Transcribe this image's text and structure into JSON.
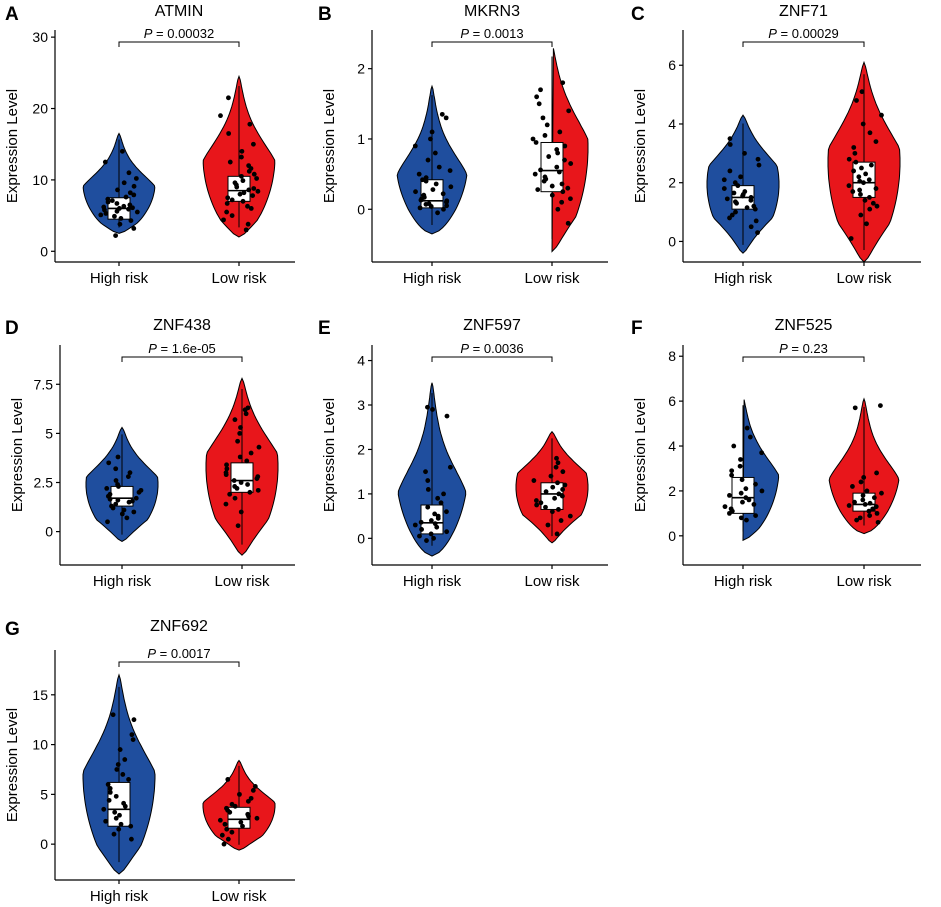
{
  "colors": {
    "high_risk": "#1f4e9e",
    "low_risk": "#e8161b",
    "box": "#ffffff",
    "ink": "#000000"
  },
  "chart_data": [
    {
      "panel": "A",
      "type": "violin",
      "title": "ATMIN",
      "ylabel": "Expression Level",
      "xlabel": "",
      "categories": [
        "High risk",
        "Low risk"
      ],
      "ylim": [
        -1.5,
        31
      ],
      "yticks": [
        0,
        10,
        20,
        30
      ],
      "pvalue_label": "P",
      "pvalue_text": " = 0.00032",
      "series": [
        {
          "name": "High risk",
          "min": 2.5,
          "max": 16.5,
          "mode": 6.5,
          "box": {
            "q1": 4.5,
            "median": 6.0,
            "q3": 7.5
          },
          "points": [
            2.2,
            3.2,
            3.8,
            4.3,
            4.6,
            4.9,
            5.1,
            5.3,
            5.5,
            5.6,
            5.8,
            5.9,
            6.0,
            6.1,
            6.2,
            6.3,
            6.5,
            6.7,
            6.9,
            7.1,
            7.3,
            7.6,
            7.9,
            8.2,
            8.6,
            9.1,
            9.6,
            10.2,
            11.0,
            12.5,
            14.0
          ]
        },
        {
          "name": "Low risk",
          "min": 2.0,
          "max": 24.5,
          "mode": 8.5,
          "box": {
            "q1": 7.0,
            "median": 8.5,
            "q3": 10.5
          },
          "points": [
            3.0,
            3.8,
            4.4,
            5.0,
            5.5,
            6.0,
            6.3,
            6.7,
            7.0,
            7.2,
            7.5,
            7.8,
            8.0,
            8.2,
            8.4,
            8.6,
            8.8,
            9.0,
            9.3,
            9.6,
            9.9,
            10.2,
            10.5,
            10.8,
            11.2,
            11.6,
            12.0,
            12.5,
            13.2,
            14.0,
            15.0,
            16.5,
            17.8,
            19.0,
            21.5
          ]
        }
      ]
    },
    {
      "panel": "B",
      "type": "violin",
      "title": "MKRN3",
      "ylabel": "Expression Level",
      "xlabel": "",
      "categories": [
        "High risk",
        "Low risk"
      ],
      "ylim": [
        -0.75,
        2.55
      ],
      "yticks": [
        0,
        1,
        2
      ],
      "pvalue_label": "P",
      "pvalue_text": " = 0.0013",
      "series": [
        {
          "name": "High risk",
          "min": -0.35,
          "max": 1.75,
          "mode": 0.1,
          "box": {
            "q1": 0.02,
            "median": 0.12,
            "q3": 0.42
          },
          "points": [
            -0.05,
            0.0,
            0.02,
            0.04,
            0.05,
            0.07,
            0.08,
            0.1,
            0.11,
            0.12,
            0.13,
            0.15,
            0.17,
            0.2,
            0.22,
            0.25,
            0.28,
            0.32,
            0.36,
            0.4,
            0.42,
            0.45,
            0.5,
            0.55,
            0.6,
            0.7,
            0.8,
            0.9,
            1.0,
            1.1,
            1.3,
            1.35
          ]
        },
        {
          "name": "Low risk",
          "min": -0.6,
          "max": 2.35,
          "mode": 0.45,
          "box": {
            "q1": 0.25,
            "median": 0.55,
            "q3": 0.95
          },
          "points": [
            -0.2,
            0.0,
            0.1,
            0.15,
            0.2,
            0.25,
            0.28,
            0.3,
            0.33,
            0.36,
            0.4,
            0.43,
            0.46,
            0.5,
            0.53,
            0.56,
            0.6,
            0.65,
            0.7,
            0.75,
            0.8,
            0.85,
            0.9,
            0.95,
            1.0,
            1.05,
            1.1,
            1.2,
            1.3,
            1.4,
            1.5,
            1.6,
            1.7,
            1.8
          ]
        }
      ]
    },
    {
      "panel": "C",
      "type": "violin",
      "title": "ZNF71",
      "ylabel": "Expression Level",
      "xlabel": "",
      "categories": [
        "High risk",
        "Low risk"
      ],
      "ylim": [
        -0.7,
        7.2
      ],
      "yticks": [
        0,
        2,
        4,
        6
      ],
      "pvalue_label": "P",
      "pvalue_text": " = 0.00029",
      "series": [
        {
          "name": "High risk",
          "min": -0.4,
          "max": 4.3,
          "mode": 1.7,
          "box": {
            "q1": 1.1,
            "median": 1.5,
            "q3": 1.9
          },
          "points": [
            0.3,
            0.5,
            0.7,
            0.8,
            0.9,
            1.0,
            1.1,
            1.15,
            1.2,
            1.3,
            1.35,
            1.4,
            1.45,
            1.5,
            1.55,
            1.6,
            1.65,
            1.7,
            1.8,
            1.9,
            2.0,
            2.1,
            2.2,
            2.4,
            2.6,
            2.8,
            3.0,
            3.3,
            3.5
          ]
        },
        {
          "name": "Low risk",
          "min": -0.7,
          "max": 6.1,
          "mode": 1.9,
          "box": {
            "q1": 1.5,
            "median": 2.0,
            "q3": 2.7
          },
          "points": [
            0.1,
            0.6,
            0.9,
            1.1,
            1.2,
            1.3,
            1.4,
            1.5,
            1.6,
            1.7,
            1.75,
            1.8,
            1.9,
            2.0,
            2.05,
            2.1,
            2.2,
            2.3,
            2.4,
            2.5,
            2.6,
            2.7,
            2.8,
            3.0,
            3.2,
            3.4,
            3.7,
            4.0,
            4.3,
            4.8,
            5.1
          ]
        }
      ]
    },
    {
      "panel": "D",
      "type": "violin",
      "title": "ZNF438",
      "ylabel": "Expression Level",
      "xlabel": "",
      "categories": [
        "High risk",
        "Low risk"
      ],
      "ylim": [
        -1.7,
        9.5
      ],
      "yticks": [
        0.0,
        2.5,
        5.0,
        7.5
      ],
      "pvalue_label": "P",
      "pvalue_text": " = 1.6e-05",
      "series": [
        {
          "name": "High risk",
          "min": -0.5,
          "max": 5.3,
          "mode": 1.7,
          "box": {
            "q1": 1.3,
            "median": 1.7,
            "q3": 2.3
          },
          "points": [
            0.5,
            0.7,
            0.9,
            1.0,
            1.1,
            1.2,
            1.3,
            1.4,
            1.5,
            1.55,
            1.6,
            1.65,
            1.7,
            1.8,
            1.9,
            2.0,
            2.1,
            2.2,
            2.3,
            2.4,
            2.6,
            2.8,
            3.0,
            3.2,
            3.5,
            3.8
          ]
        },
        {
          "name": "Low risk",
          "min": -1.2,
          "max": 7.8,
          "mode": 2.3,
          "box": {
            "q1": 2.0,
            "median": 2.6,
            "q3": 3.5
          },
          "points": [
            0.3,
            1.0,
            1.4,
            1.7,
            1.9,
            2.0,
            2.1,
            2.2,
            2.3,
            2.4,
            2.5,
            2.6,
            2.7,
            2.8,
            2.9,
            3.0,
            3.2,
            3.4,
            3.6,
            3.8,
            4.0,
            4.3,
            4.6,
            5.0,
            5.3,
            5.7,
            6.0,
            6.2,
            6.3
          ]
        }
      ]
    },
    {
      "panel": "E",
      "type": "violin",
      "title": "ZNF597",
      "ylabel": "Expression Level",
      "xlabel": "",
      "categories": [
        "High risk",
        "Low risk"
      ],
      "ylim": [
        -0.6,
        4.35
      ],
      "yticks": [
        0,
        1,
        2,
        3,
        4
      ],
      "pvalue_label": "P",
      "pvalue_text": " = 0.0036",
      "series": [
        {
          "name": "High risk",
          "min": -0.4,
          "max": 3.5,
          "mode": 0.3,
          "box": {
            "q1": 0.1,
            "median": 0.35,
            "q3": 0.75
          },
          "points": [
            -0.05,
            0.0,
            0.05,
            0.1,
            0.15,
            0.2,
            0.25,
            0.3,
            0.33,
            0.36,
            0.4,
            0.45,
            0.5,
            0.55,
            0.6,
            0.7,
            0.8,
            0.9,
            1.0,
            1.1,
            1.3,
            1.5,
            1.6,
            2.9,
            2.95,
            2.75
          ]
        },
        {
          "name": "Low risk",
          "min": -0.1,
          "max": 2.4,
          "mode": 1.0,
          "box": {
            "q1": 0.65,
            "median": 1.0,
            "q3": 1.25
          },
          "points": [
            0.1,
            0.3,
            0.4,
            0.5,
            0.6,
            0.65,
            0.7,
            0.75,
            0.8,
            0.85,
            0.9,
            0.95,
            1.0,
            1.05,
            1.1,
            1.15,
            1.2,
            1.25,
            1.3,
            1.4,
            1.5,
            1.6,
            1.7,
            1.8
          ]
        }
      ]
    },
    {
      "panel": "F",
      "type": "violin",
      "title": "ZNF525",
      "ylabel": "Expression Level",
      "xlabel": "",
      "categories": [
        "High risk",
        "Low risk"
      ],
      "ylim": [
        -1.3,
        8.5
      ],
      "yticks": [
        0,
        2,
        4,
        6,
        8
      ],
      "pvalue_label": "P",
      "pvalue_text": " = 0.23",
      "series": [
        {
          "name": "High risk",
          "min": -0.2,
          "max": 6.2,
          "mode": 1.5,
          "box": {
            "q1": 1.0,
            "median": 1.7,
            "q3": 2.6
          },
          "points": [
            0.7,
            0.8,
            0.9,
            1.0,
            1.1,
            1.2,
            1.3,
            1.4,
            1.5,
            1.6,
            1.7,
            1.8,
            1.9,
            2.0,
            2.1,
            2.3,
            2.5,
            2.7,
            2.9,
            3.1,
            3.4,
            3.7,
            4.0,
            4.4,
            4.8
          ]
        },
        {
          "name": "Low risk",
          "min": 0.1,
          "max": 6.1,
          "mode": 1.4,
          "box": {
            "q1": 1.1,
            "median": 1.4,
            "q3": 1.9
          },
          "points": [
            0.6,
            0.7,
            0.8,
            0.9,
            1.0,
            1.1,
            1.2,
            1.3,
            1.35,
            1.4,
            1.45,
            1.5,
            1.6,
            1.7,
            1.8,
            1.9,
            2.0,
            2.2,
            2.4,
            2.6,
            2.8,
            5.7,
            5.8
          ]
        }
      ]
    },
    {
      "panel": "G",
      "type": "violin",
      "title": "ZNF692",
      "ylabel": "Expression Level",
      "xlabel": "",
      "categories": [
        "High risk",
        "Low risk"
      ],
      "ylim": [
        -3.6,
        19.5
      ],
      "yticks": [
        0,
        5,
        10,
        15
      ],
      "pvalue_label": "P",
      "pvalue_text": " = 0.0017",
      "series": [
        {
          "name": "High risk",
          "min": -3.0,
          "max": 17.0,
          "mode": 3.5,
          "box": {
            "q1": 1.8,
            "median": 3.5,
            "q3": 6.2
          },
          "points": [
            0.5,
            1.0,
            1.5,
            1.8,
            2.0,
            2.3,
            2.6,
            2.9,
            3.2,
            3.5,
            3.8,
            4.1,
            4.4,
            4.8,
            5.2,
            5.6,
            6.0,
            6.5,
            7.0,
            7.5,
            8.0,
            8.5,
            9.5,
            10.5,
            11.0,
            12.5,
            13.0
          ]
        },
        {
          "name": "Low risk",
          "min": -0.6,
          "max": 8.4,
          "mode": 2.5,
          "box": {
            "q1": 1.6,
            "median": 2.5,
            "q3": 3.7
          },
          "points": [
            0.0,
            0.5,
            0.9,
            1.2,
            1.5,
            1.8,
            2.0,
            2.2,
            2.4,
            2.6,
            2.8,
            3.0,
            3.2,
            3.4,
            3.6,
            3.8,
            4.0,
            4.3,
            4.6,
            5.0,
            5.4,
            5.8,
            6.5
          ]
        }
      ]
    }
  ]
}
